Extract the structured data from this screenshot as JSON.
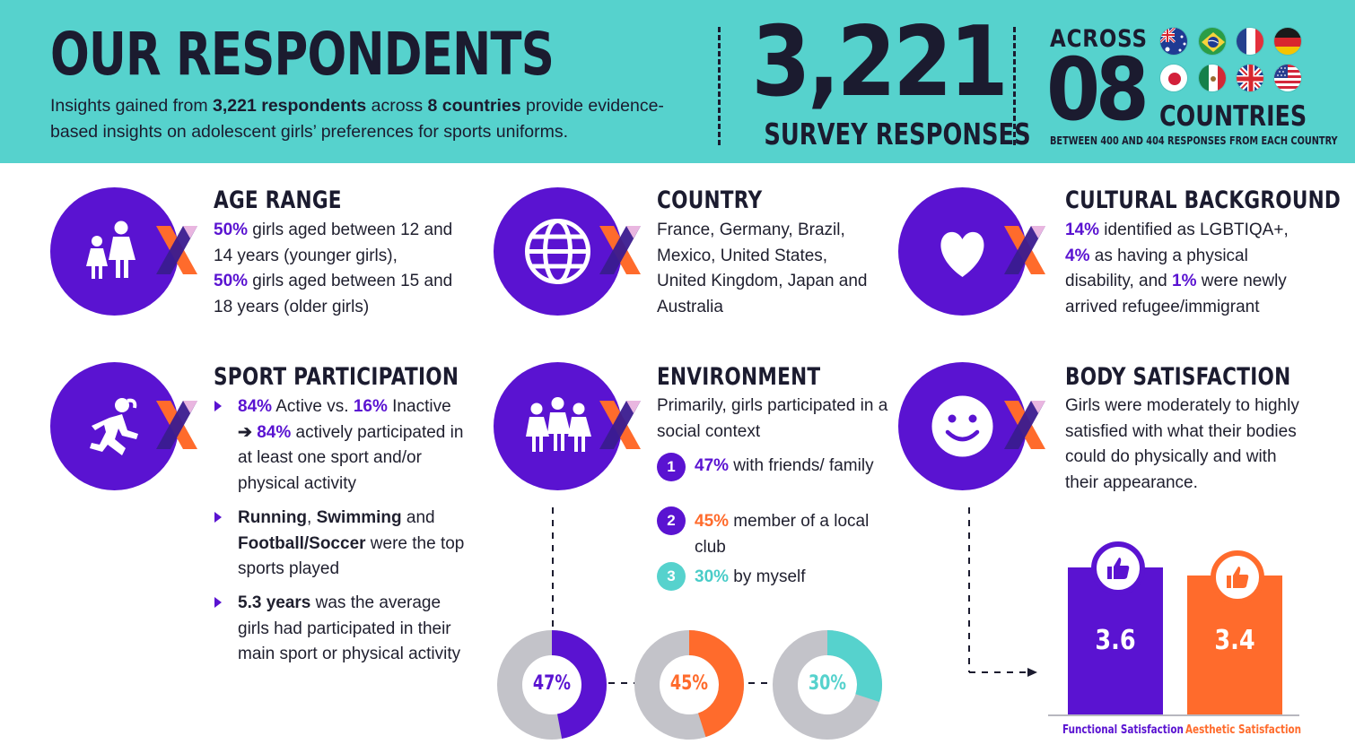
{
  "header": {
    "title": "OUR RESPONDENTS",
    "intro_a": "Insights gained from ",
    "intro_b": "3,221 respondents",
    "intro_c": " across ",
    "intro_d": "8 countries",
    "intro_e": " provide evidence-based insights on adolescent girls’ preferences for sports uniforms.",
    "big_number": "3,221",
    "big_caption": "SURVEY RESPONSES",
    "across": "ACROSS",
    "country_count": "08",
    "countries_label": "COUNTRIES",
    "range_note": "BETWEEN 400 AND 404 RESPONSES FROM EACH COUNTRY",
    "flags": [
      "australia-flag",
      "brazil-flag",
      "france-flag",
      "germany-flag",
      "japan-flag",
      "mexico-flag",
      "uk-flag",
      "usa-flag"
    ]
  },
  "age": {
    "title": "AGE RANGE",
    "p1": "50%",
    "t1": " girls aged between 12 and 14 years (younger girls),",
    "p2": "50%",
    "t2": " girls aged between 15 and 18 years (older girls)"
  },
  "country": {
    "title": "COUNTRY",
    "text": "France, Germany, Brazil, Mexico, United States, United Kingdom, Japan and Australia"
  },
  "culture": {
    "title": "CULTURAL BACKGROUND",
    "p1": "14%",
    "t1": " identified as LGBTIQA+,",
    "p2": "4%",
    "t2": " as having a physical disability, and ",
    "p3": "1%",
    "t3": " were newly arrived refugee/immigrant"
  },
  "sport": {
    "title": "SPORT PARTICIPATION",
    "b1_p1": "84%",
    "b1_t1": " Active vs. ",
    "b1_p2": "16%",
    "b1_t2": " Inactive",
    "b1_arrow": "➔ ",
    "b1_p3": "84%",
    "b1_t3": " actively participated in at least one sport and/or physical activity",
    "b2_s1": "Running",
    "b2_c1": ", ",
    "b2_s2": "Swimming",
    "b2_c2": " and ",
    "b2_s3": "Football/Soccer",
    "b2_t": " were the top sports played",
    "b3_s": "5.3 years",
    "b3_t": " was the average girls had participated in their main sport or physical activity"
  },
  "environment": {
    "title": "ENVIRONMENT",
    "intro": "Primarily, girls participated in a social context",
    "items": [
      {
        "num": "1",
        "pct": "47%",
        "text": " with friends/ family"
      },
      {
        "num": "2",
        "pct": "45%",
        "text": " member of a local club"
      },
      {
        "num": "3",
        "pct": "30%",
        "text": " by myself"
      }
    ],
    "donuts": [
      {
        "label": "47%",
        "value": 47,
        "color": "#5a13d1"
      },
      {
        "label": "45%",
        "value": 45,
        "color": "#ff6b2c"
      },
      {
        "label": "30%",
        "value": 30,
        "color": "#56d2cd"
      }
    ]
  },
  "body": {
    "title": "BODY SATISFACTION",
    "text": "Girls were moderately to highly satisfied with what their bodies could do physically and with their appearance.",
    "bars": [
      {
        "label": "Functional Satisfaction",
        "value_label": "3.6",
        "value": 3.6,
        "color": "#5a13d1"
      },
      {
        "label": "Aesthetic Satisfaction",
        "value_label": "3.4",
        "value": 3.4,
        "color": "#ff6b2c"
      }
    ]
  },
  "colors": {
    "purple": "#5a13d1",
    "orange": "#ff6b2c",
    "teal": "#56d2cd",
    "navy": "#1b1b2f",
    "gray": "#c3c3c9"
  }
}
